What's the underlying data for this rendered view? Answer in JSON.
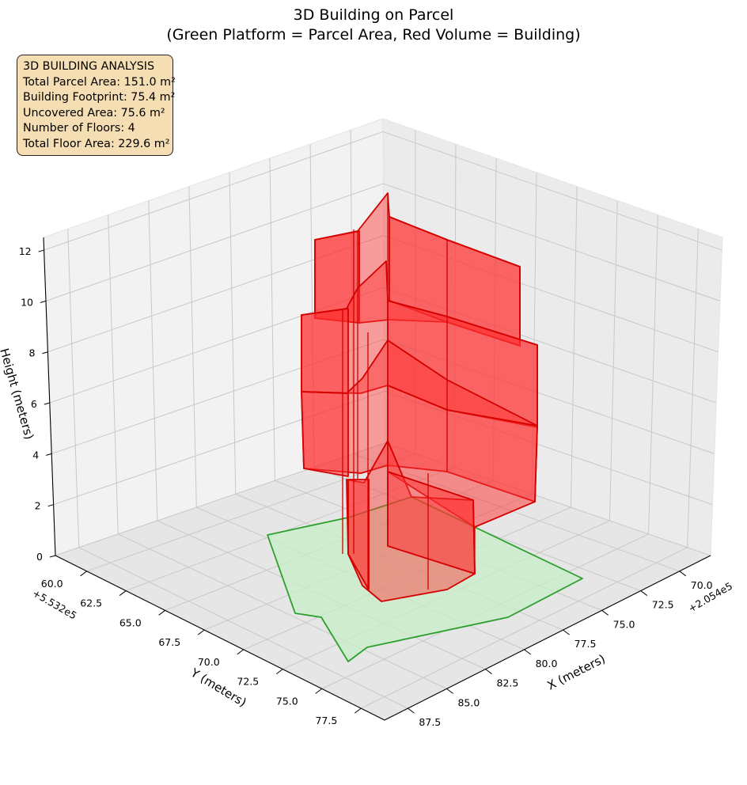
{
  "chart_data": {
    "type": "3d-surface",
    "title": "3D Building on Parcel",
    "subtitle": "(Green Platform = Parcel Area, Red Volume = Building)",
    "xlabel": "X (meters)",
    "ylabel": "Y (meters)",
    "zlabel": "Height (meters)",
    "x_offset_label": "+2.054e5",
    "y_offset_label": "+5.532e5",
    "x_ticks": [
      "70.0",
      "72.5",
      "75.0",
      "77.5",
      "80.0",
      "82.5",
      "85.0",
      "87.5"
    ],
    "y_ticks": [
      "60.0",
      "62.5",
      "65.0",
      "67.5",
      "70.0",
      "72.5",
      "75.0",
      "77.5"
    ],
    "z_ticks": [
      "0",
      "2",
      "4",
      "6",
      "8",
      "10",
      "12"
    ],
    "xlim": [
      68,
      89
    ],
    "ylim": [
      58,
      79
    ],
    "zlim": [
      0,
      12.5
    ],
    "grid": true,
    "colors": {
      "parcel_fill": "#c8eec8",
      "parcel_edge": "#2ca02c",
      "building_fill": "#ff3030",
      "building_edge": "#d40000",
      "info_box": "#f5deb3"
    },
    "annotation": {
      "heading": "3D BUILDING ANALYSIS",
      "lines": [
        "Total Parcel Area: 151.0 m²",
        "Building Footprint: 75.4 m²",
        "Uncovered Area: 75.6 m²",
        "Number of Floors: 4",
        "Total Floor Area: 229.6 m²"
      ]
    }
  }
}
